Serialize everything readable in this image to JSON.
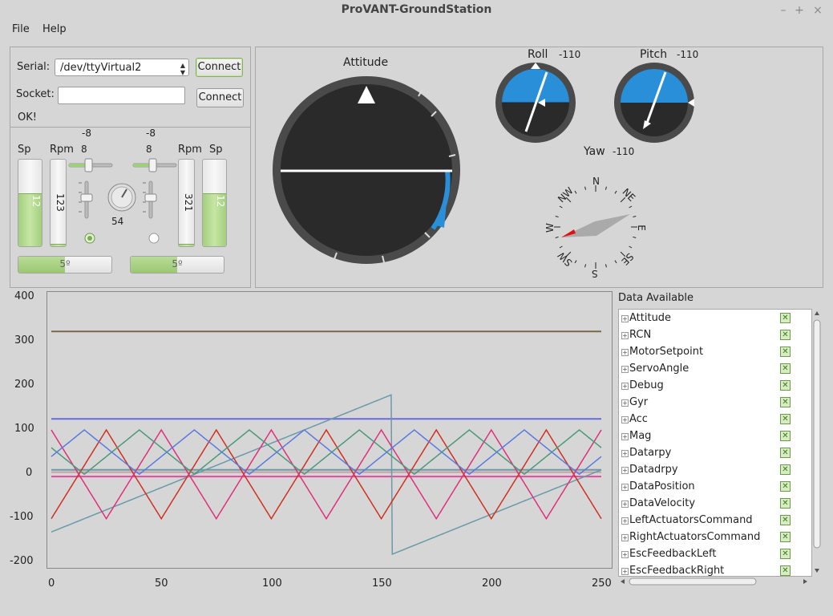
{
  "window": {
    "title": "ProVANT-GroundStation",
    "min": "–",
    "max": "+",
    "close": "×"
  },
  "menu": {
    "file": "File",
    "help": "Help"
  },
  "connection": {
    "serial_label": "Serial:",
    "serial_value": "/dev/ttyVirtual2",
    "connect_label": "Connect",
    "socket_label": "Socket:",
    "socket_value": "",
    "socket_connect_label": "Connect",
    "status": "OK!"
  },
  "motors": {
    "left": {
      "sp_label": "Sp",
      "rpm_label": "Rpm",
      "top_value": "-8",
      "slider_value": "8",
      "sp_value": "12",
      "rpm_value": "123",
      "angle": "5º",
      "sp_level": 0.6,
      "rpm_level": 0.02
    },
    "right": {
      "sp_label": "Sp",
      "rpm_label": "Rpm",
      "top_value": "-8",
      "slider_value": "8",
      "sp_value": "12",
      "rpm_value": "321",
      "angle": "5º",
      "sp_level": 0.6,
      "rpm_level": 0.02
    },
    "dial_value": "54"
  },
  "instruments": {
    "attitude_label": "Attitude",
    "roll_label": "Roll",
    "roll_value": "-110",
    "pitch_label": "Pitch",
    "pitch_value": "-110",
    "yaw_label": "Yaw",
    "yaw_value": "-110",
    "compass": {
      "n": "N",
      "ne": "NE",
      "e": "E",
      "se": "SE",
      "s": "S",
      "sw": "SW",
      "w": "W",
      "nw": "NW"
    }
  },
  "plot": {
    "yticks": [
      "400",
      "300",
      "200",
      "100",
      "0",
      "-100",
      "-200"
    ],
    "xticks": [
      "0",
      "50",
      "100",
      "150",
      "200",
      "250"
    ]
  },
  "chart_data": {
    "type": "line",
    "x_range": [
      0,
      250
    ],
    "ylim": [
      -200,
      400
    ],
    "series": [
      {
        "color": "#7a6a4a",
        "kind": "const",
        "value": 322
      },
      {
        "color": "#6a6ae0",
        "kind": "const",
        "value": 125
      },
      {
        "color": "#6a9aaa",
        "kind": "const",
        "value": 10
      },
      {
        "color": "#c8a0a0",
        "kind": "const",
        "value": 5
      },
      {
        "color": "#e04aa0",
        "kind": "const",
        "value": -5
      },
      {
        "color": "#6a9aaa",
        "kind": "saw",
        "period": 180,
        "offset": -25,
        "min": -180,
        "max": 180
      },
      {
        "color": "#d03020",
        "kind": "tri",
        "period": 50,
        "offset": 0,
        "min": -100,
        "max": 100
      },
      {
        "color": "#e0307a",
        "kind": "tri",
        "period": 50,
        "offset": 0,
        "min": -100,
        "max": 100,
        "invert": true
      },
      {
        "color": "#4a9a7a",
        "kind": "tri",
        "period": 50,
        "offset": 15,
        "min": 0,
        "max": 100
      },
      {
        "color": "#5a7ae0",
        "kind": "tri",
        "period": 50,
        "offset": -10,
        "min": 0,
        "max": 100
      }
    ]
  },
  "data_panel": {
    "title": "Data Available",
    "items": [
      "Attitude",
      "RCN",
      "MotorSetpoint",
      "ServoAngle",
      "Debug",
      "Gyr",
      "Acc",
      "Mag",
      "Datarpy",
      "Datadrpy",
      "DataPosition",
      "DataVelocity",
      "LeftActuatorsCommand",
      "RightActuatorsCommand",
      "EscFeedbackLeft",
      "EscFeedbackRight"
    ]
  }
}
